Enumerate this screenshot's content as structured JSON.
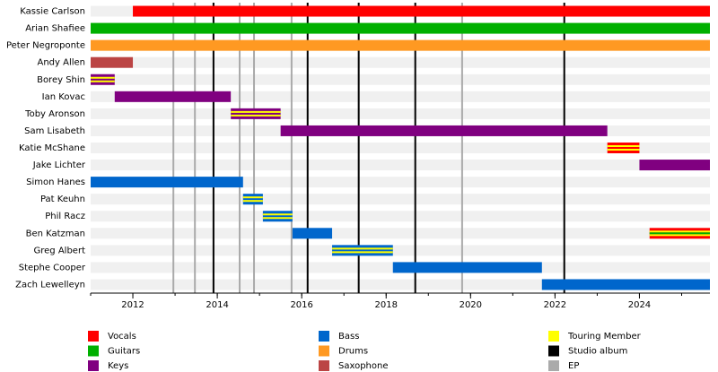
{
  "chart_data": {
    "type": "timeline",
    "xlim": [
      2011,
      2025.67
    ],
    "xticks": [
      2012,
      2014,
      2016,
      2018,
      2020,
      2022,
      2024
    ],
    "touring_color": "#ffff00",
    "members": [
      {
        "name": "Kassie Carlson",
        "periods": [
          {
            "start": 2012.0,
            "end": 2025.67,
            "colors": [
              "#ff0000"
            ],
            "touring": false
          }
        ]
      },
      {
        "name": "Arian Shafiee",
        "periods": [
          {
            "start": 2011.0,
            "end": 2025.67,
            "colors": [
              "#00b000"
            ],
            "touring": false
          }
        ]
      },
      {
        "name": "Peter Negroponte",
        "periods": [
          {
            "start": 2011.0,
            "end": 2025.67,
            "colors": [
              "#ff9922"
            ],
            "touring": false
          }
        ]
      },
      {
        "name": "Andy Allen",
        "periods": [
          {
            "start": 2011.0,
            "end": 2012.0,
            "colors": [
              "#bb4444"
            ],
            "touring": false
          }
        ]
      },
      {
        "name": "Borey Shin",
        "periods": [
          {
            "start": 2011.0,
            "end": 2011.57,
            "colors": [
              "#800080"
            ],
            "touring": true
          }
        ]
      },
      {
        "name": "Ian Kovac",
        "periods": [
          {
            "start": 2011.57,
            "end": 2014.32,
            "colors": [
              "#800080"
            ],
            "touring": false
          }
        ]
      },
      {
        "name": "Toby Aronson",
        "periods": [
          {
            "start": 2014.32,
            "end": 2015.5,
            "colors": [
              "#800080"
            ],
            "touring": true
          }
        ]
      },
      {
        "name": "Sam Lisabeth",
        "periods": [
          {
            "start": 2015.5,
            "end": 2023.24,
            "colors": [
              "#800080"
            ],
            "touring": false
          }
        ]
      },
      {
        "name": "Katie McShane",
        "periods": [
          {
            "start": 2023.24,
            "end": 2024.0,
            "colors": [
              "#ff0000"
            ],
            "touring": true
          }
        ]
      },
      {
        "name": "Jake Lichter",
        "periods": [
          {
            "start": 2024.0,
            "end": 2025.67,
            "colors": [
              "#800080"
            ],
            "touring": false
          }
        ]
      },
      {
        "name": "Simon Hanes",
        "periods": [
          {
            "start": 2011.0,
            "end": 2014.61,
            "colors": [
              "#0066cc"
            ],
            "touring": false
          }
        ]
      },
      {
        "name": "Pat Keuhn",
        "periods": [
          {
            "start": 2014.61,
            "end": 2015.08,
            "colors": [
              "#0066cc"
            ],
            "touring": true
          }
        ]
      },
      {
        "name": "Phil Racz",
        "periods": [
          {
            "start": 2015.08,
            "end": 2015.78,
            "colors": [
              "#0066cc"
            ],
            "touring": true
          }
        ]
      },
      {
        "name": "Ben Katzman",
        "periods": [
          {
            "start": 2015.78,
            "end": 2016.72,
            "colors": [
              "#0066cc"
            ],
            "touring": false
          },
          {
            "start": 2024.24,
            "end": 2025.67,
            "colors": [
              "#ff0000",
              "#00b000"
            ],
            "touring": true
          }
        ]
      },
      {
        "name": "Greg Albert",
        "periods": [
          {
            "start": 2016.72,
            "end": 2018.16,
            "colors": [
              "#0066cc"
            ],
            "touring": true
          }
        ]
      },
      {
        "name": "Stephe Cooper",
        "periods": [
          {
            "start": 2018.16,
            "end": 2021.69,
            "colors": [
              "#0066cc"
            ],
            "touring": false
          }
        ]
      },
      {
        "name": "Zach Lewelleyn",
        "periods": [
          {
            "start": 2021.69,
            "end": 2025.67,
            "colors": [
              "#0066cc"
            ],
            "touring": false
          }
        ]
      }
    ],
    "studio_albums": {
      "color": "#000000",
      "x": [
        2013.91,
        2016.14,
        2017.35,
        2018.69,
        2022.22
      ]
    },
    "eps": {
      "color": "#aaaaaa",
      "x": [
        2012.96,
        2013.47,
        2014.53,
        2014.87,
        2015.76,
        2019.8
      ]
    },
    "legend": [
      {
        "label": "Vocals",
        "color": "#ff0000"
      },
      {
        "label": "Guitars",
        "color": "#00b000"
      },
      {
        "label": "Keys",
        "color": "#800080"
      },
      {
        "label": "Bass",
        "color": "#0066cc"
      },
      {
        "label": "Drums",
        "color": "#ff9922"
      },
      {
        "label": "Saxophone",
        "color": "#bb4444"
      },
      {
        "label": "Touring Member",
        "color": "#ffff00"
      },
      {
        "label": "Studio album",
        "color": "#000000"
      },
      {
        "label": "EP",
        "color": "#aaaaaa"
      }
    ]
  }
}
